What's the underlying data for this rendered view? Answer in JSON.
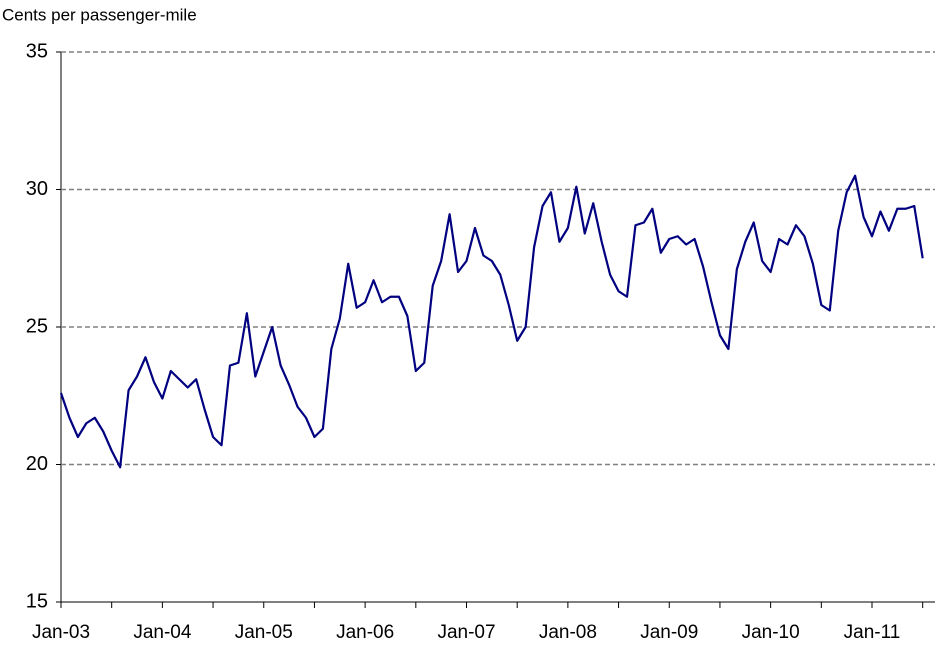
{
  "chart_data": {
    "type": "line",
    "y_label": "Cents per passenger-mile",
    "categories": [
      "Jan-03",
      null,
      null,
      null,
      null,
      null,
      null,
      null,
      null,
      null,
      null,
      null,
      "Jan-04",
      null,
      null,
      null,
      null,
      null,
      null,
      null,
      null,
      null,
      null,
      null,
      "Jan-05",
      null,
      null,
      null,
      null,
      null,
      null,
      null,
      null,
      null,
      null,
      null,
      "Jan-06",
      null,
      null,
      null,
      null,
      null,
      null,
      null,
      null,
      null,
      null,
      null,
      "Jan-07",
      null,
      null,
      null,
      null,
      null,
      null,
      null,
      null,
      null,
      null,
      null,
      "Jan-08",
      null,
      null,
      null,
      null,
      null,
      null,
      null,
      null,
      null,
      null,
      null,
      "Jan-09",
      null,
      null,
      null,
      null,
      null,
      null,
      null,
      null,
      null,
      null,
      null,
      "Jan-10",
      null,
      null,
      null,
      null,
      null,
      null,
      null,
      null,
      null,
      null,
      null,
      "Jan-11",
      null,
      null,
      null,
      null,
      null,
      null
    ],
    "series": [
      {
        "color": "#000080",
        "values": [
          22.6,
          21.7,
          21.0,
          21.5,
          21.7,
          21.2,
          20.5,
          19.9,
          22.7,
          23.2,
          23.9,
          23.0,
          22.4,
          23.4,
          23.1,
          22.8,
          23.1,
          22.0,
          21.0,
          20.7,
          23.6,
          23.7,
          25.5,
          23.2,
          24.1,
          25.0,
          23.6,
          22.9,
          22.1,
          21.7,
          21.0,
          21.3,
          24.2,
          25.3,
          27.3,
          25.7,
          25.9,
          26.7,
          25.9,
          26.1,
          26.1,
          25.4,
          23.4,
          23.7,
          26.5,
          27.4,
          29.1,
          27.0,
          27.4,
          28.6,
          27.6,
          27.4,
          26.9,
          25.8,
          24.5,
          25.0,
          27.9,
          29.4,
          29.9,
          28.1,
          28.6,
          30.1,
          28.4,
          29.5,
          28.1,
          26.9,
          26.3,
          26.1,
          28.7,
          28.8,
          29.3,
          27.7,
          28.2,
          28.3,
          28.0,
          28.2,
          27.2,
          25.9,
          24.7,
          24.2,
          27.1,
          28.1,
          28.8,
          27.4,
          27.0,
          28.2,
          28.0,
          28.7,
          28.3,
          27.3,
          25.8,
          25.6,
          28.5,
          29.9,
          30.5,
          29.0,
          28.3,
          29.2,
          28.5,
          29.3,
          29.3,
          29.4,
          27.5
        ]
      }
    ],
    "ylim": [
      15,
      35
    ],
    "yticks": [
      15,
      20,
      25,
      30,
      35
    ],
    "grid": true
  }
}
